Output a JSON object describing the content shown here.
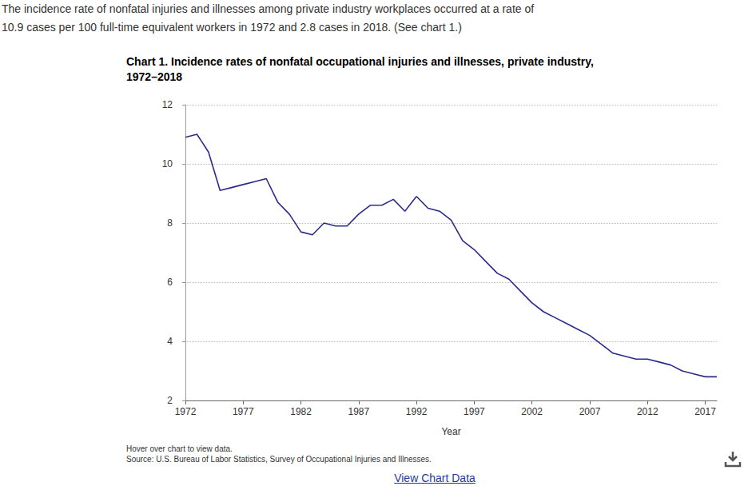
{
  "intro": [
    "The incidence rate of nonfatal injuries and illnesses among private industry workplaces occurred at a rate of",
    "10.9 cases per 100 full-time equivalent workers in 1972 and 2.8 cases in 2018. (See chart 1.)"
  ],
  "notes": [
    "Hover over chart to view data.",
    "Source: U.S. Bureau of Labor Statistics, Survey of Occupational Injuries and Illnesses."
  ],
  "link": "View Chart Data",
  "chart_data": {
    "type": "line",
    "title": [
      "Chart 1. Incidence rates of nonfatal occupational injuries and illnesses, private industry,",
      "1972–2018"
    ],
    "x_label": "Year",
    "x": [
      1972,
      1973,
      1974,
      1975,
      1976,
      1977,
      1978,
      1979,
      1980,
      1981,
      1982,
      1983,
      1984,
      1985,
      1986,
      1987,
      1988,
      1989,
      1990,
      1991,
      1992,
      1993,
      1994,
      1995,
      1996,
      1997,
      1998,
      1999,
      2000,
      2001,
      2002,
      2003,
      2004,
      2005,
      2006,
      2007,
      2008,
      2009,
      2010,
      2011,
      2012,
      2013,
      2014,
      2015,
      2016,
      2017,
      2018
    ],
    "values": [
      10.9,
      11.0,
      10.4,
      9.1,
      9.2,
      9.3,
      9.4,
      9.5,
      8.7,
      8.3,
      7.7,
      7.6,
      8.0,
      7.9,
      7.9,
      8.3,
      8.6,
      8.6,
      8.8,
      8.4,
      8.9,
      8.5,
      8.4,
      8.1,
      7.4,
      7.1,
      6.7,
      6.3,
      6.1,
      5.7,
      5.3,
      5.0,
      4.8,
      4.6,
      4.4,
      4.2,
      3.9,
      3.6,
      3.5,
      3.4,
      3.4,
      3.3,
      3.2,
      3.0,
      2.9,
      2.8,
      2.8
    ],
    "color": "#2b2a8c",
    "xlim": [
      1972,
      2018
    ],
    "xticks": [
      1972,
      1977,
      1982,
      1987,
      1992,
      1997,
      2002,
      2007,
      2012,
      2017
    ],
    "ylim": [
      2,
      12
    ],
    "yticks": [
      2,
      4,
      6,
      8,
      10,
      12
    ],
    "grid": true
  }
}
